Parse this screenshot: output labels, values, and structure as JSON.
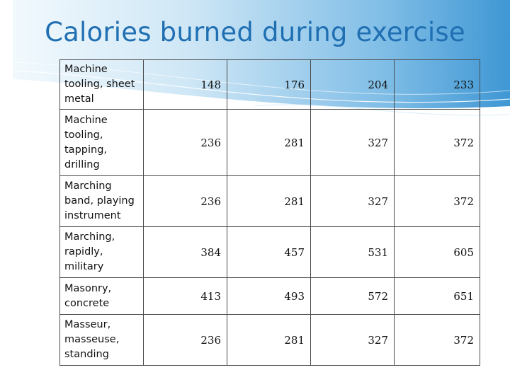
{
  "slide": {
    "title": "Calories burned during exercise"
  },
  "table": {
    "rows": [
      {
        "activity": "Machine tooling, sheet metal",
        "values": [
          "148",
          "176",
          "204",
          "233"
        ]
      },
      {
        "activity": "Machine tooling, tapping, drilling",
        "values": [
          "236",
          "281",
          "327",
          "372"
        ]
      },
      {
        "activity": "Marching band, playing instrument",
        "values": [
          "236",
          "281",
          "327",
          "372"
        ]
      },
      {
        "activity": "Marching, rapidly, military",
        "values": [
          "384",
          "457",
          "531",
          "605"
        ]
      },
      {
        "activity": "Masonry, concrete",
        "values": [
          "413",
          "493",
          "572",
          "651"
        ]
      },
      {
        "activity": "Masseur, masseuse, standing",
        "values": [
          "236",
          "281",
          "327",
          "372"
        ]
      }
    ]
  },
  "colors": {
    "title": "#1f6fb2",
    "header_band_light": "#e6f3fb",
    "header_band_dark": "#2f8fd0",
    "border": "#4a4a4a"
  }
}
